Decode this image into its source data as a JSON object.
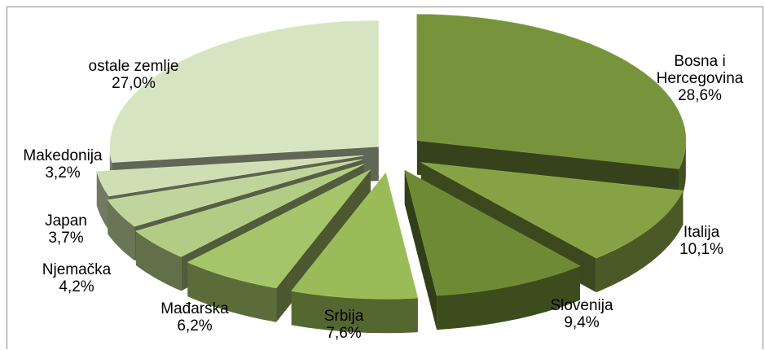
{
  "chart_data": {
    "type": "pie",
    "style": "exploded 3d",
    "title": "",
    "slices": [
      {
        "label_lines": [
          "Bosna i",
          "Hercegovina"
        ],
        "value_label": "28,6%",
        "value": 28.6,
        "color": "#77933c"
      },
      {
        "label_lines": [
          "Italija"
        ],
        "value_label": "10,1%",
        "value": 10.1,
        "color": "#86a244"
      },
      {
        "label_lines": [
          "Slovenija"
        ],
        "value_label": "9,4%",
        "value": 9.4,
        "color": "#6e8a35"
      },
      {
        "label_lines": [
          "Srbija"
        ],
        "value_label": "7,6%",
        "value": 7.6,
        "color": "#9bbb59"
      },
      {
        "label_lines": [
          "Mađarska"
        ],
        "value_label": "6,2%",
        "value": 6.2,
        "color": "#a6c46a"
      },
      {
        "label_lines": [
          "Njemačka"
        ],
        "value_label": "4,2%",
        "value": 4.2,
        "color": "#b3cc85"
      },
      {
        "label_lines": [
          "Japan"
        ],
        "value_label": "3,7%",
        "value": 3.7,
        "color": "#c0d59b"
      },
      {
        "label_lines": [
          "Makedonija"
        ],
        "value_label": "3,2%",
        "value": 3.2,
        "color": "#cfdeb3"
      },
      {
        "label_lines": [
          "ostale zemlje"
        ],
        "value_label": "27,0%",
        "value": 27.0,
        "color": "#d7e4c2"
      }
    ]
  }
}
